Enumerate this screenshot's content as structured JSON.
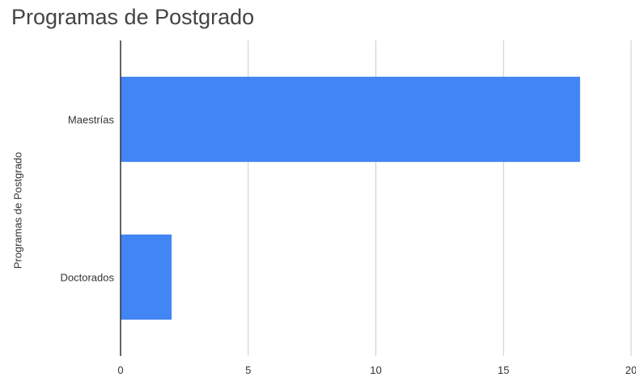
{
  "chart_data": {
    "type": "bar",
    "orientation": "horizontal",
    "title": "Programas de Postgrado",
    "xlabel": "",
    "ylabel": "Programas de Postgrado",
    "categories": [
      "Maestrías",
      "Doctorados"
    ],
    "values": [
      18,
      2
    ],
    "xlim": [
      0,
      20
    ],
    "xticks": [
      "0",
      "5",
      "10",
      "15",
      "20"
    ],
    "grid": true,
    "legend": "none",
    "bar_color": "#4285f4",
    "grid_color": "#cccccc",
    "axis_color": "#333333"
  }
}
